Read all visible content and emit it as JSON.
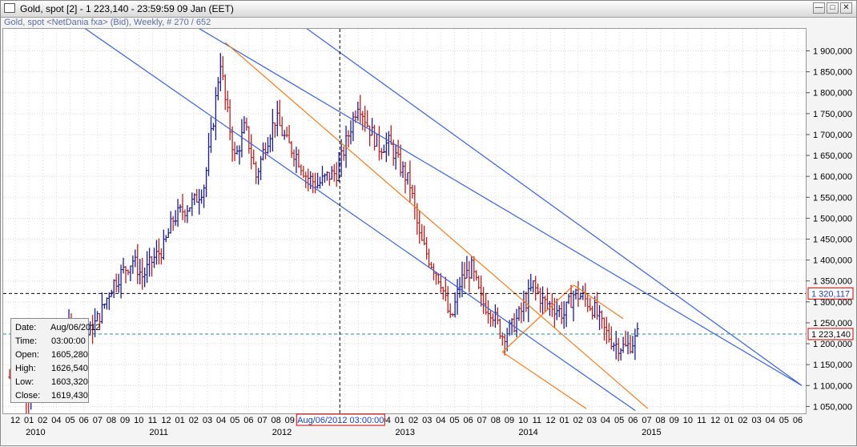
{
  "window": {
    "title": "Gold, spot [2] - 1 223,140 - 23:59:59  09 Jan (EET)",
    "subtitle": "Gold, spot <NetDania fxa> (Bid), Weekly, # 270 / 652",
    "minimize_icon": "minimize-icon",
    "maximize_icon": "maximize-icon",
    "close_icon": "close-icon"
  },
  "info_box": {
    "date_label": "Date:",
    "date_value": "Aug/06/2012",
    "time_label": "Time:",
    "time_value": "03:00:00",
    "open_label": "Open:",
    "open_value": "1605,280",
    "high_label": "High:",
    "high_value": "1626,540",
    "low_label": "Low:",
    "low_value": "1603,320",
    "close_label": "Close:",
    "close_value": "1619,430"
  },
  "crosshair_date_label": "Aug/06/2012 03:00:00",
  "price_markers": {
    "crosshair_price": "1 320,117",
    "last_price": "1 223,140"
  },
  "chart_data": {
    "type": "ohlc",
    "instrument": "Gold, spot",
    "timeframe": "Weekly",
    "y_ticks": [
      "1 050,000",
      "1 100,000",
      "1 150,000",
      "1 200,000",
      "1 250,000",
      "1 300,000",
      "1 350,000",
      "1 400,000",
      "1 450,000",
      "1 500,000",
      "1 550,000",
      "1 600,000",
      "1 650,000",
      "1 700,000",
      "1 750,000",
      "1 800,000",
      "1 850,000",
      "1 900,000"
    ],
    "y_tick_values": [
      1050,
      1100,
      1150,
      1200,
      1250,
      1300,
      1350,
      1400,
      1450,
      1500,
      1550,
      1600,
      1650,
      1700,
      1750,
      1800,
      1850,
      1900
    ],
    "ylim": [
      1045,
      1945
    ],
    "x_month_ticks": [
      "12",
      "01",
      "02",
      "04",
      "05",
      "06",
      "07",
      "08",
      "09",
      "10",
      "11",
      "12",
      "01",
      "02",
      "03",
      "04",
      "05",
      "06",
      "07",
      "08",
      "09",
      "10",
      "11",
      "12",
      "01",
      "02",
      "03",
      "04",
      "01",
      "02",
      "03",
      "04",
      "05",
      "06",
      "07",
      "08",
      "09",
      "10",
      "11",
      "12",
      "01",
      "02",
      "03",
      "04",
      "05",
      "06",
      "07",
      "08",
      "09",
      "10",
      "11",
      "12",
      "01",
      "02",
      "03",
      "04",
      "05",
      "06"
    ],
    "x_year_labels": [
      "2010",
      "2011",
      "2012",
      "2013",
      "2014",
      "2015"
    ],
    "x_year_values": [
      2010.0,
      2011.0,
      2012.0,
      2013.0,
      2014.0,
      2015.0
    ],
    "xlim": [
      2009.9,
      2016.35
    ],
    "crosshair": {
      "date": 2012.6,
      "price": 1320.117
    },
    "last_price": 1223.14,
    "close_path": [
      [
        2009.92,
        1120
      ],
      [
        2010.0,
        1100
      ],
      [
        2010.08,
        1075
      ],
      [
        2010.17,
        1110
      ],
      [
        2010.25,
        1150
      ],
      [
        2010.33,
        1200
      ],
      [
        2010.42,
        1240
      ],
      [
        2010.5,
        1205
      ],
      [
        2010.58,
        1230
      ],
      [
        2010.67,
        1280
      ],
      [
        2010.75,
        1340
      ],
      [
        2010.83,
        1370
      ],
      [
        2010.92,
        1400
      ],
      [
        2011.0,
        1360
      ],
      [
        2011.08,
        1400
      ],
      [
        2011.17,
        1430
      ],
      [
        2011.25,
        1500
      ],
      [
        2011.33,
        1520
      ],
      [
        2011.42,
        1540
      ],
      [
        2011.5,
        1580
      ],
      [
        2011.58,
        1750
      ],
      [
        2011.63,
        1880
      ],
      [
        2011.67,
        1780
      ],
      [
        2011.75,
        1640
      ],
      [
        2011.83,
        1720
      ],
      [
        2011.92,
        1600
      ],
      [
        2012.0,
        1680
      ],
      [
        2012.08,
        1740
      ],
      [
        2012.17,
        1680
      ],
      [
        2012.25,
        1650
      ],
      [
        2012.33,
        1600
      ],
      [
        2012.42,
        1580
      ],
      [
        2012.5,
        1600
      ],
      [
        2012.58,
        1610
      ],
      [
        2012.67,
        1700
      ],
      [
        2012.75,
        1780
      ],
      [
        2012.83,
        1720
      ],
      [
        2012.92,
        1670
      ],
      [
        2013.0,
        1680
      ],
      [
        2013.08,
        1630
      ],
      [
        2013.17,
        1580
      ],
      [
        2013.25,
        1450
      ],
      [
        2013.33,
        1400
      ],
      [
        2013.42,
        1350
      ],
      [
        2013.5,
        1250
      ],
      [
        2013.58,
        1350
      ],
      [
        2013.67,
        1380
      ],
      [
        2013.75,
        1300
      ],
      [
        2013.83,
        1280
      ],
      [
        2013.92,
        1220
      ],
      [
        2014.0,
        1240
      ],
      [
        2014.08,
        1280
      ],
      [
        2014.17,
        1340
      ],
      [
        2014.25,
        1300
      ],
      [
        2014.33,
        1290
      ],
      [
        2014.42,
        1270
      ],
      [
        2014.5,
        1320
      ],
      [
        2014.58,
        1310
      ],
      [
        2014.67,
        1280
      ],
      [
        2014.75,
        1230
      ],
      [
        2014.83,
        1200
      ],
      [
        2014.92,
        1190
      ],
      [
        2015.0,
        1210
      ],
      [
        2015.02,
        1223
      ]
    ],
    "channel_lines": [
      {
        "color": "#3a62d6",
        "from": [
          2011.42,
          1960
        ],
        "to": [
          2016.35,
          1100
        ]
      },
      {
        "color": "#3a62d6",
        "from": [
          2012.3,
          1960
        ],
        "to": [
          2016.35,
          1100
        ]
      },
      {
        "color": "#3a62d6",
        "from": [
          2010.5,
          1960
        ],
        "to": [
          2015.0,
          1040
        ]
      },
      {
        "color": "#f07a1e",
        "from": [
          2011.67,
          1920
        ],
        "to": [
          2015.1,
          1045
        ]
      },
      {
        "color": "#f07a1e",
        "from": [
          2013.92,
          1180
        ],
        "to": [
          2014.5,
          1340
        ]
      },
      {
        "color": "#f07a1e",
        "from": [
          2013.92,
          1180
        ],
        "to": [
          2014.6,
          1045
        ]
      },
      {
        "color": "#f07a1e",
        "from": [
          2014.5,
          1340
        ],
        "to": [
          2014.9,
          1260
        ]
      }
    ]
  },
  "colors": {
    "bull_bar": "#1c1c8c",
    "bear_bar": "#b22222",
    "blue_channel": "#3a62d6",
    "orange_channel": "#f07a1e",
    "grid": "#d8d8d8",
    "price_marker_border": "#cc0000",
    "crosshair_price_text": "#1a3fb4",
    "last_price_line": "#2e8b8b"
  }
}
